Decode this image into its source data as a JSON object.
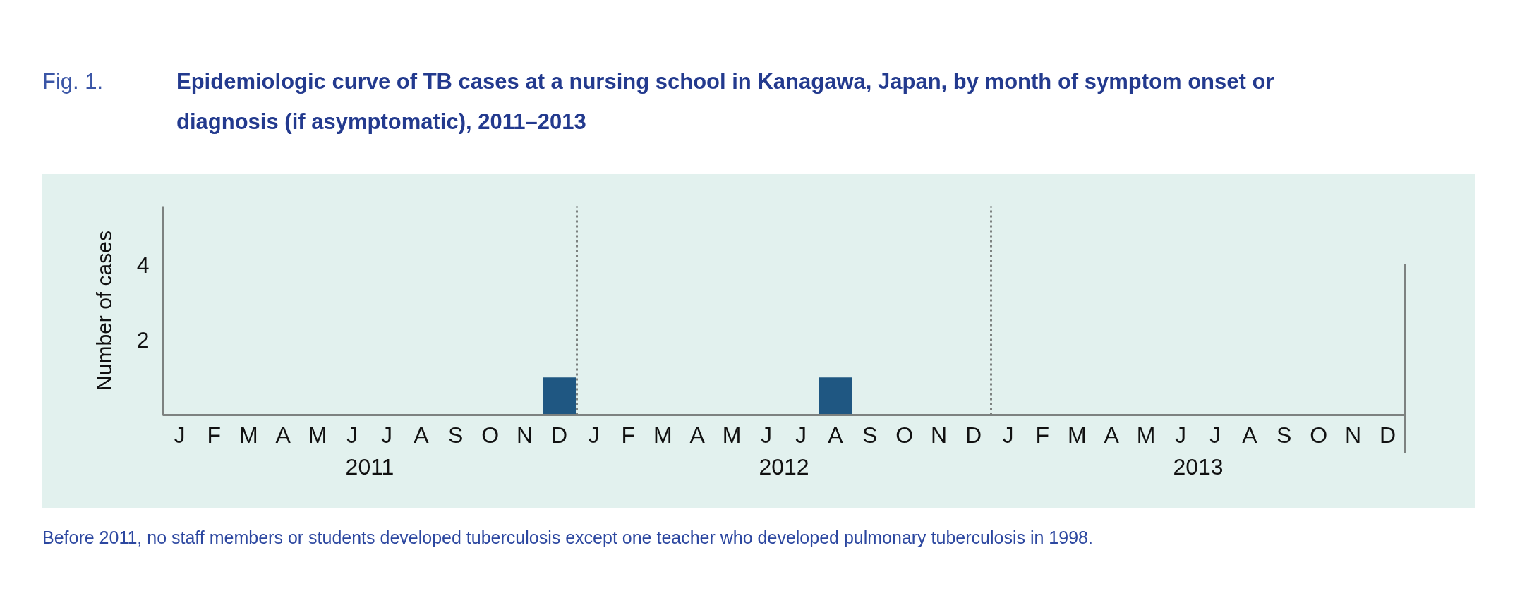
{
  "chart_data": [
    {
      "type": "bar",
      "title": "Epidemiologic curve of TB cases at a nursing school in Kanagawa, Japan, by month of symptom onset or diagnosis (if asymptomatic), 2011–2013",
      "ylabel": "Number of cases",
      "xlabel": "2011",
      "categories": [
        "J",
        "F",
        "M",
        "A",
        "M",
        "J",
        "J",
        "A",
        "S",
        "O",
        "N",
        "D"
      ],
      "values": [
        null,
        null,
        null,
        null,
        null,
        null,
        null,
        null,
        null,
        null,
        null,
        1
      ],
      "color": "#1f5782",
      "ylim": [
        0,
        5.6
      ],
      "yticks": [
        2,
        4
      ],
      "annotations": [
        "Fig. 1.",
        "Before 2011, no staff members or students developed tuberculosis except one teacher who developed pulmonary tuberculosis in 1998."
      ]
    },
    {
      "type": "bar",
      "xlabel": "2012",
      "categories": [
        "J",
        "F",
        "M",
        "A",
        "M",
        "J",
        "J",
        "A",
        "S",
        "O",
        "N",
        "D"
      ],
      "values": [
        null,
        null,
        null,
        null,
        null,
        null,
        null,
        1,
        null,
        null,
        null,
        null
      ],
      "color": "#1f5782",
      "ylim": [
        0,
        5.6
      ],
      "tick_labels": "x"
    },
    {
      "type": "bar",
      "xlabel": "2013",
      "categories": [
        "J",
        "F",
        "M",
        "A",
        "M",
        "J",
        "J",
        "A",
        "S",
        "O",
        "N",
        "D"
      ],
      "values": [
        null,
        null,
        null,
        null,
        null,
        null,
        null,
        null,
        null,
        null,
        null,
        null
      ],
      "ylim": [
        0,
        5.6
      ],
      "tick_labels": "x"
    }
  ]
}
